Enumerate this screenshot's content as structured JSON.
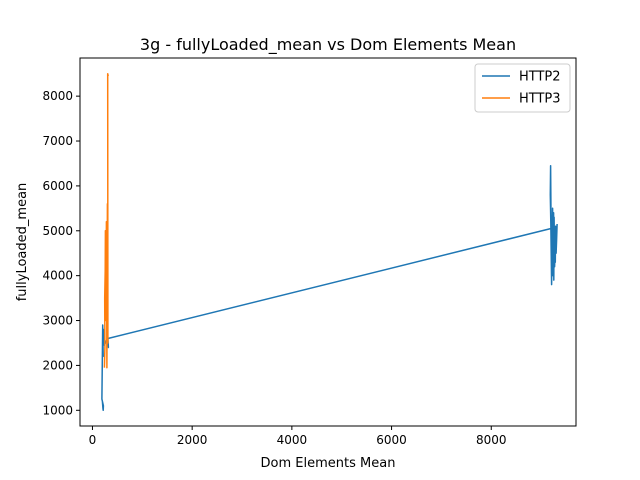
{
  "chart_data": {
    "type": "line",
    "title": "3g - fullyLoaded_mean vs Dom Elements Mean",
    "xlabel": "Dom Elements Mean",
    "ylabel": "fullyLoaded_mean",
    "xlim": [
      -250,
      9700
    ],
    "ylim": [
      650,
      8850
    ],
    "xticks": [
      0,
      2000,
      4000,
      6000,
      8000
    ],
    "xtick_labels": [
      "0",
      "2000",
      "4000",
      "6000",
      "8000"
    ],
    "yticks": [
      1000,
      2000,
      3000,
      4000,
      5000,
      6000,
      7000,
      8000
    ],
    "ytick_labels": [
      "1000",
      "2000",
      "3000",
      "4000",
      "5000",
      "6000",
      "7000",
      "8000"
    ],
    "grid": false,
    "legend": "top-right",
    "series": [
      {
        "name": "HTTP2",
        "color": "#1f77b4",
        "x": [
          200,
          210,
          215,
          220,
          190,
          205,
          215,
          210,
          225,
          230,
          240,
          300,
          320,
          310,
          9200,
          9190,
          9185,
          9195,
          9210,
          9230,
          9240,
          9250,
          9255,
          9260,
          9270,
          9280,
          9285,
          9290,
          9300,
          9310,
          9320
        ],
        "y": [
          1200,
          1050,
          1000,
          1100,
          1250,
          2900,
          2200,
          2500,
          2800,
          2550,
          2450,
          2600,
          2400,
          2600,
          5050,
          6450,
          5800,
          5200,
          3800,
          5500,
          4000,
          5400,
          3900,
          5300,
          4200,
          4600,
          4300,
          5100,
          4500,
          4800,
          5150
        ]
      },
      {
        "name": "HTTP3",
        "color": "#ff7f0e",
        "x": [
          240,
          250,
          245,
          255,
          260,
          270,
          280,
          290,
          300,
          310,
          305,
          315
        ],
        "y": [
          1950,
          2400,
          3500,
          4100,
          5000,
          3000,
          5200,
          1950,
          5600,
          2500,
          8500,
          8450
        ]
      }
    ]
  }
}
